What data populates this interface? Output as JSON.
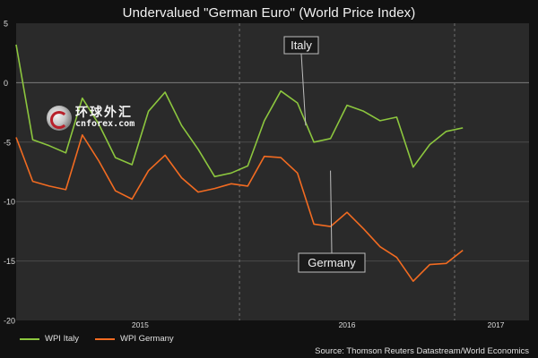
{
  "chart_data": {
    "type": "line",
    "title": "Undervalued \"German Euro\" (World Price Index)",
    "xlabel": "",
    "ylabel": "",
    "ylim": [
      -20,
      5
    ],
    "yticks": [
      5,
      0,
      -5,
      -10,
      -15,
      -20
    ],
    "xticks": [
      {
        "label": "2015",
        "x": 7.5
      },
      {
        "label": "2016",
        "x": 20
      },
      {
        "label": "2017",
        "x": 29
      }
    ],
    "year_dividers": [
      13.5,
      26.5
    ],
    "xlim": [
      0,
      31
    ],
    "x": [
      0,
      1,
      2,
      3,
      4,
      5,
      6,
      7,
      8,
      9,
      10,
      11,
      12,
      13,
      14,
      15,
      16,
      17,
      18,
      19,
      20,
      21,
      22,
      23,
      24,
      25,
      26,
      27,
      28,
      29,
      30,
      31
    ],
    "series": [
      {
        "name": "WPI Italy",
        "color": "#8cc63e",
        "values": [
          3.2,
          -4.8,
          -5.3,
          -5.9,
          -1.3,
          -3.5,
          -6.3,
          -6.9,
          -2.4,
          -0.8,
          -3.6,
          -5.6,
          -7.9,
          -7.6,
          -7.0,
          -3.2,
          -0.7,
          -1.7,
          -5.0,
          -4.7,
          -1.9,
          -2.4,
          -3.2,
          -2.9,
          -7.1,
          -5.2,
          -4.1,
          -3.8,
          null,
          null,
          null,
          null
        ],
        "label": "Italy",
        "label_at": [
          17.5,
          -3.6
        ]
      },
      {
        "name": "WPI Germany",
        "color": "#f26b21",
        "values": [
          -4.6,
          -8.3,
          -8.7,
          -9.0,
          -4.4,
          -6.6,
          -9.1,
          -9.8,
          -7.4,
          -6.1,
          -8.0,
          -9.2,
          -8.9,
          -8.5,
          -8.7,
          -6.2,
          -6.3,
          -7.6,
          -11.9,
          -12.1,
          -10.9,
          -12.3,
          -13.8,
          -14.7,
          -16.7,
          -15.3,
          -15.2,
          -14.1,
          null,
          null,
          null,
          null
        ],
        "label": "Germany",
        "label_at": [
          19,
          -7.4
        ]
      }
    ],
    "legend_placement": "bottom-left",
    "grid": true
  },
  "legend": {
    "italy": "WPI Italy",
    "germany": "WPI Germany"
  },
  "labels": {
    "italy": "Italy",
    "germany": "Germany"
  },
  "source": "Source: Thomson Reuters Datastream/World Economics",
  "watermark": {
    "cn": "环球外汇",
    "en": "cnforex.com"
  },
  "colors": {
    "background": "#111111",
    "plot_bg": "#2a2a2a",
    "grid": "#555555",
    "italy": "#8cc63e",
    "germany": "#f26b21"
  }
}
